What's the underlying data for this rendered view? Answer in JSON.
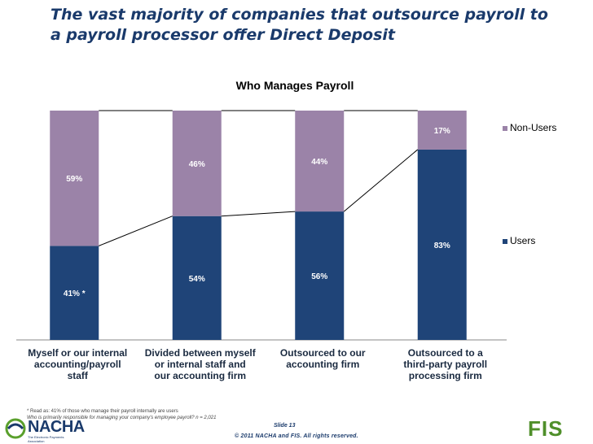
{
  "slide": {
    "title": "The vast majority of companies that outsource payroll to a payroll processor offer Direct Deposit",
    "footnote_1": "* Read as: 41% of those who manage their payroll internally are users",
    "footnote_2": "Who is primarily responsible for managing your company's employee payroll? n = 2,021",
    "slide_number": "Slide 13",
    "copyright": "© 2011 NACHA and FIS. All rights reserved.",
    "nacha_logo_text": "NACHA",
    "nacha_tagline": "The Electronic Payments Association",
    "fis_logo_text": "FIS"
  },
  "colors": {
    "users": "#1f4478",
    "non_users": "#9b83a8",
    "title": "#1a3a6b"
  },
  "chart_data": {
    "type": "bar",
    "stacked": true,
    "title": "Who Manages Payroll",
    "categories": [
      "Myself or our internal accounting/payroll staff",
      "Divided between myself or internal staff and our accounting firm",
      "Outsourced to our accounting firm",
      "Outsourced to a third-party payroll processing firm"
    ],
    "series": [
      {
        "name": "Users",
        "values": [
          41,
          54,
          56,
          83
        ],
        "labels": [
          "41% *",
          "54%",
          "56%",
          "83%"
        ]
      },
      {
        "name": "Non-Users",
        "values": [
          59,
          46,
          44,
          17
        ],
        "labels": [
          "59%",
          "46%",
          "44%",
          "17%"
        ]
      }
    ],
    "ylim": [
      0,
      100
    ],
    "trend_line": "connects tops of Users segments",
    "legend_position": "right"
  }
}
